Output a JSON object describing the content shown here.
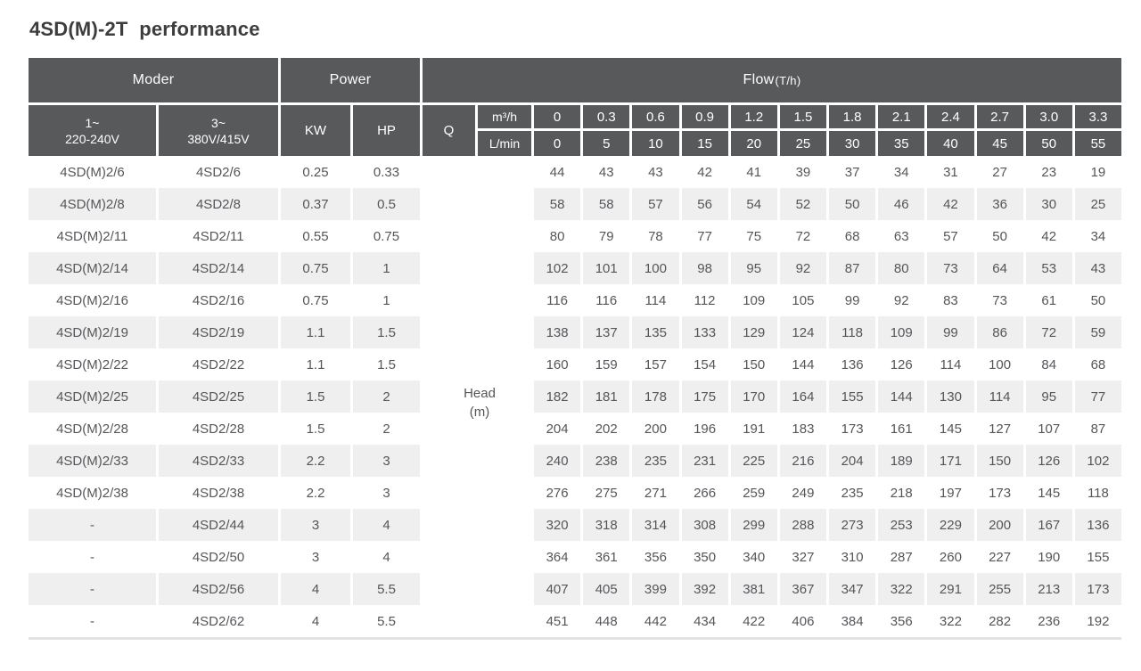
{
  "title": "4SD(M)-2T  performance",
  "colors": {
    "header_bg": "#58595b",
    "header_text": "#ffffff",
    "stripe_bg": "#efefef",
    "body_text": "#55565a"
  },
  "table": {
    "header": {
      "moder_label": "Moder",
      "power_label": "Power",
      "flow_label": "Flow",
      "flow_unit": "(T/h)",
      "phase1_line1": "1~",
      "phase1_line2": "220-240V",
      "phase3_line1": "3~",
      "phase3_line2": "380V/415V",
      "kw_label": "KW",
      "hp_label": "HP",
      "q_label": "Q",
      "m3h_label": "m³/h",
      "lmin_label": "L/min"
    },
    "head_label_line1": "Head",
    "head_label_line2": "(m)",
    "flow_m3h": [
      "0",
      "0.3",
      "0.6",
      "0.9",
      "1.2",
      "1.5",
      "1.8",
      "2.1",
      "2.4",
      "2.7",
      "3.0",
      "3.3"
    ],
    "flow_lmin": [
      "0",
      "5",
      "10",
      "15",
      "20",
      "25",
      "30",
      "35",
      "40",
      "45",
      "50",
      "55"
    ],
    "rows": [
      {
        "model_1ph": "4SD(M)2/6",
        "model_3ph": "4SD2/6",
        "kw": "0.25",
        "hp": "0.33",
        "head": [
          44,
          43,
          43,
          42,
          41,
          39,
          37,
          34,
          31,
          27,
          23,
          19
        ]
      },
      {
        "model_1ph": "4SD(M)2/8",
        "model_3ph": "4SD2/8",
        "kw": "0.37",
        "hp": "0.5",
        "head": [
          58,
          58,
          57,
          56,
          54,
          52,
          50,
          46,
          42,
          36,
          30,
          25
        ]
      },
      {
        "model_1ph": "4SD(M)2/11",
        "model_3ph": "4SD2/11",
        "kw": "0.55",
        "hp": "0.75",
        "head": [
          80,
          79,
          78,
          77,
          75,
          72,
          68,
          63,
          57,
          50,
          42,
          34
        ]
      },
      {
        "model_1ph": "4SD(M)2/14",
        "model_3ph": "4SD2/14",
        "kw": "0.75",
        "hp": "1",
        "head": [
          102,
          101,
          100,
          98,
          95,
          92,
          87,
          80,
          73,
          64,
          53,
          43
        ]
      },
      {
        "model_1ph": "4SD(M)2/16",
        "model_3ph": "4SD2/16",
        "kw": "0.75",
        "hp": "1",
        "head": [
          116,
          116,
          114,
          112,
          109,
          105,
          99,
          92,
          83,
          73,
          61,
          50
        ]
      },
      {
        "model_1ph": "4SD(M)2/19",
        "model_3ph": "4SD2/19",
        "kw": "1.1",
        "hp": "1.5",
        "head": [
          138,
          137,
          135,
          133,
          129,
          124,
          118,
          109,
          99,
          86,
          72,
          59
        ]
      },
      {
        "model_1ph": "4SD(M)2/22",
        "model_3ph": "4SD2/22",
        "kw": "1.1",
        "hp": "1.5",
        "head": [
          160,
          159,
          157,
          154,
          150,
          144,
          136,
          126,
          114,
          100,
          84,
          68
        ]
      },
      {
        "model_1ph": "4SD(M)2/25",
        "model_3ph": "4SD2/25",
        "kw": "1.5",
        "hp": "2",
        "head": [
          182,
          181,
          178,
          175,
          170,
          164,
          155,
          144,
          130,
          114,
          95,
          77
        ]
      },
      {
        "model_1ph": "4SD(M)2/28",
        "model_3ph": "4SD2/28",
        "kw": "1.5",
        "hp": "2",
        "head": [
          204,
          202,
          200,
          196,
          191,
          183,
          173,
          161,
          145,
          127,
          107,
          87
        ]
      },
      {
        "model_1ph": "4SD(M)2/33",
        "model_3ph": "4SD2/33",
        "kw": "2.2",
        "hp": "3",
        "head": [
          240,
          238,
          235,
          231,
          225,
          216,
          204,
          189,
          171,
          150,
          126,
          102
        ]
      },
      {
        "model_1ph": "4SD(M)2/38",
        "model_3ph": "4SD2/38",
        "kw": "2.2",
        "hp": "3",
        "head": [
          276,
          275,
          271,
          266,
          259,
          249,
          235,
          218,
          197,
          173,
          145,
          118
        ]
      },
      {
        "model_1ph": "-",
        "model_3ph": "4SD2/44",
        "kw": "3",
        "hp": "4",
        "head": [
          320,
          318,
          314,
          308,
          299,
          288,
          273,
          253,
          229,
          200,
          167,
          136
        ]
      },
      {
        "model_1ph": "-",
        "model_3ph": "4SD2/50",
        "kw": "3",
        "hp": "4",
        "head": [
          364,
          361,
          356,
          350,
          340,
          327,
          310,
          287,
          260,
          227,
          190,
          155
        ]
      },
      {
        "model_1ph": "-",
        "model_3ph": "4SD2/56",
        "kw": "4",
        "hp": "5.5",
        "head": [
          407,
          405,
          399,
          392,
          381,
          367,
          347,
          322,
          291,
          255,
          213,
          173
        ]
      },
      {
        "model_1ph": "-",
        "model_3ph": "4SD2/62",
        "kw": "4",
        "hp": "5.5",
        "head": [
          451,
          448,
          442,
          434,
          422,
          406,
          384,
          356,
          322,
          282,
          236,
          192
        ]
      }
    ]
  }
}
